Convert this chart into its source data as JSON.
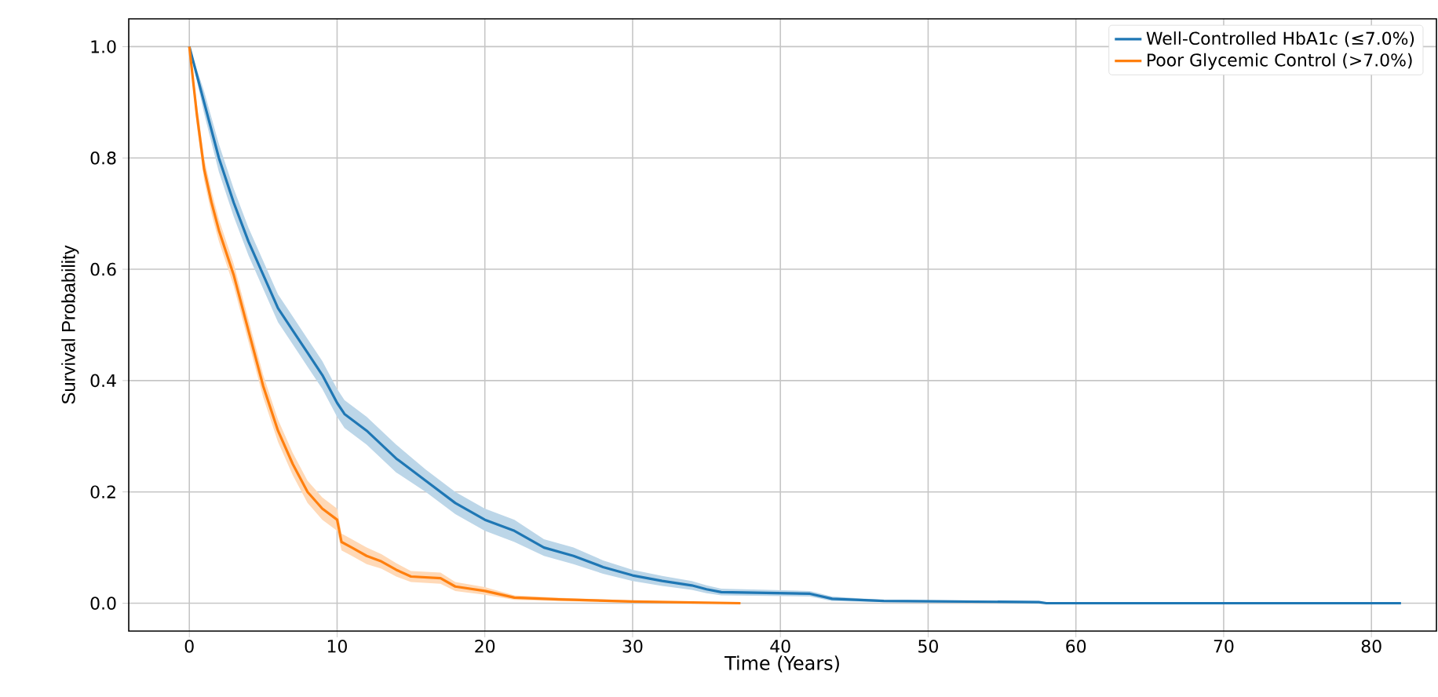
{
  "chart_data": {
    "type": "line",
    "xlabel": "Time (Years)",
    "ylabel": "Survival Probability",
    "xlim": [
      -4.1,
      84.4
    ],
    "ylim": [
      -0.05,
      1.05
    ],
    "xticks": [
      0,
      10,
      20,
      30,
      40,
      50,
      60,
      70,
      80
    ],
    "yticks": [
      {
        "value": 0,
        "label": "0.0"
      },
      {
        "value": 0.2,
        "label": "0.2"
      },
      {
        "value": 0.4,
        "label": "0.4"
      },
      {
        "value": 0.6,
        "label": "0.6"
      },
      {
        "value": 0.8,
        "label": "0.8"
      },
      {
        "value": 1,
        "label": "1.0"
      }
    ],
    "grid": true,
    "legend": "top right",
    "series": [
      {
        "name": "Well-Controlled HbA1c (≤7.0%)",
        "color": "#1f77b4",
        "x": [
          0,
          1,
          2,
          3,
          4,
          5,
          6,
          7,
          8,
          9,
          10,
          10.5,
          12,
          14,
          16,
          18,
          20,
          22,
          24,
          26,
          28,
          30,
          32,
          34,
          35,
          36,
          42,
          43.5,
          47,
          57.5,
          58,
          82
        ],
        "values": [
          1.0,
          0.9,
          0.8,
          0.72,
          0.65,
          0.59,
          0.53,
          0.49,
          0.45,
          0.41,
          0.36,
          0.34,
          0.31,
          0.26,
          0.22,
          0.18,
          0.15,
          0.13,
          0.1,
          0.085,
          0.065,
          0.05,
          0.04,
          0.032,
          0.025,
          0.02,
          0.017,
          0.008,
          0.004,
          0.002,
          0.0,
          0.0
        ],
        "lower": [
          1.0,
          0.88,
          0.775,
          0.695,
          0.625,
          0.565,
          0.505,
          0.465,
          0.425,
          0.385,
          0.335,
          0.315,
          0.285,
          0.235,
          0.2,
          0.16,
          0.13,
          0.11,
          0.085,
          0.07,
          0.053,
          0.04,
          0.031,
          0.024,
          0.018,
          0.014,
          0.012,
          0.004,
          0.002,
          0.0,
          0.0,
          0.0
        ],
        "upper": [
          1.0,
          0.92,
          0.825,
          0.745,
          0.675,
          0.615,
          0.555,
          0.515,
          0.475,
          0.435,
          0.385,
          0.365,
          0.335,
          0.285,
          0.24,
          0.2,
          0.17,
          0.15,
          0.115,
          0.1,
          0.077,
          0.06,
          0.049,
          0.04,
          0.032,
          0.026,
          0.022,
          0.012,
          0.006,
          0.004,
          0.0,
          0.0
        ]
      },
      {
        "name": "Poor Glycemic Control (>7.0%)",
        "color": "#ff7f0e",
        "x": [
          0,
          0.5,
          1,
          1.5,
          2,
          3,
          4,
          5,
          6,
          7,
          8,
          9,
          10,
          10.3,
          11,
          12,
          13,
          14,
          15,
          17,
          18,
          20,
          22,
          25,
          30,
          37.3
        ],
        "values": [
          1.0,
          0.88,
          0.78,
          0.72,
          0.67,
          0.59,
          0.49,
          0.39,
          0.31,
          0.25,
          0.2,
          0.17,
          0.15,
          0.11,
          0.1,
          0.085,
          0.075,
          0.06,
          0.048,
          0.045,
          0.03,
          0.022,
          0.01,
          0.007,
          0.003,
          0.0
        ],
        "lower": [
          1.0,
          0.86,
          0.76,
          0.7,
          0.65,
          0.57,
          0.47,
          0.37,
          0.29,
          0.23,
          0.18,
          0.15,
          0.13,
          0.095,
          0.085,
          0.07,
          0.062,
          0.048,
          0.038,
          0.035,
          0.022,
          0.015,
          0.006,
          0.004,
          0.001,
          0.0
        ],
        "upper": [
          1.0,
          0.9,
          0.8,
          0.74,
          0.69,
          0.61,
          0.51,
          0.41,
          0.33,
          0.27,
          0.22,
          0.19,
          0.17,
          0.125,
          0.115,
          0.1,
          0.088,
          0.072,
          0.058,
          0.055,
          0.038,
          0.029,
          0.014,
          0.01,
          0.005,
          0.0
        ]
      }
    ]
  }
}
